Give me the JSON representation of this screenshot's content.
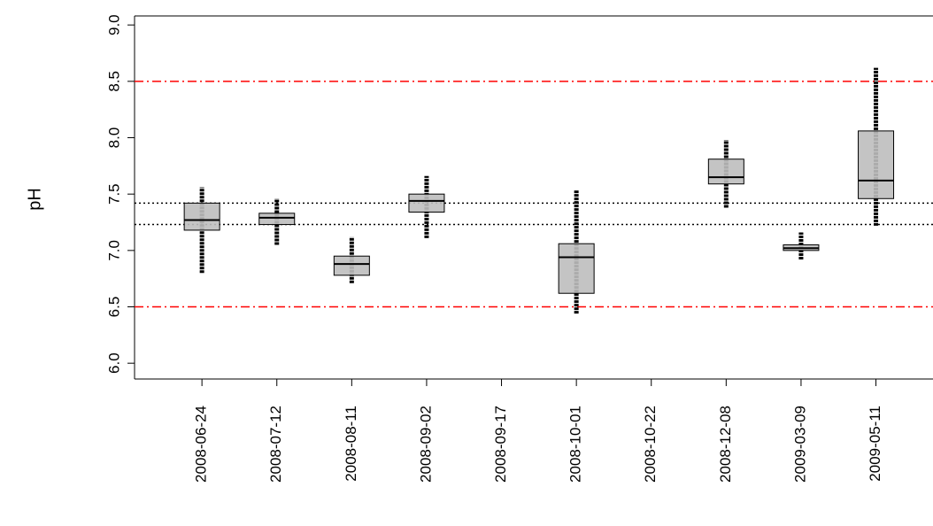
{
  "chart_data": {
    "type": "box",
    "ylabel": "pH",
    "categories": [
      "2008-06-24",
      "2008-07-12",
      "2008-08-11",
      "2008-09-02",
      "2008-09-17",
      "2008-10-01",
      "2008-10-22",
      "2008-12-08",
      "2009-03-09",
      "2009-05-11"
    ],
    "boxes": [
      {
        "min": 6.8,
        "q1": 7.18,
        "median": 7.27,
        "q3": 7.42,
        "max": 7.56
      },
      {
        "min": 7.05,
        "q1": 7.23,
        "median": 7.29,
        "q3": 7.33,
        "max": 7.46
      },
      {
        "min": 6.71,
        "q1": 6.78,
        "median": 6.88,
        "q3": 6.95,
        "max": 7.12
      },
      {
        "min": 7.11,
        "q1": 7.34,
        "median": 7.44,
        "q3": 7.5,
        "max": 7.66
      },
      null,
      {
        "min": 6.44,
        "q1": 6.62,
        "median": 6.94,
        "q3": 7.06,
        "max": 7.54
      },
      null,
      {
        "min": 7.38,
        "q1": 7.59,
        "median": 7.65,
        "q3": 7.81,
        "max": 7.98
      },
      {
        "min": 6.92,
        "q1": 7.0,
        "median": 7.02,
        "q3": 7.05,
        "max": 7.16
      },
      {
        "min": 7.22,
        "q1": 7.46,
        "median": 7.62,
        "q3": 8.06,
        "max": 8.62
      }
    ],
    "color": "#bebebe",
    "reference_lines": [
      {
        "value": 8.5,
        "color": "#ff0000",
        "style": "dashdot"
      },
      {
        "value": 6.5,
        "color": "#ff0000",
        "style": "dashdot"
      },
      {
        "value": 7.42,
        "color": "#000000",
        "style": "dotted"
      },
      {
        "value": 7.23,
        "color": "#000000",
        "style": "dotted"
      }
    ],
    "ylim": [
      5.86,
      9.08
    ],
    "yticks": [
      {
        "value": 6,
        "label": "6.0"
      },
      6.5,
      {
        "value": 7,
        "label": "7.0"
      },
      7.5,
      {
        "value": 8,
        "label": "8.0"
      },
      8.5,
      {
        "value": 9,
        "label": "9.0"
      }
    ]
  }
}
